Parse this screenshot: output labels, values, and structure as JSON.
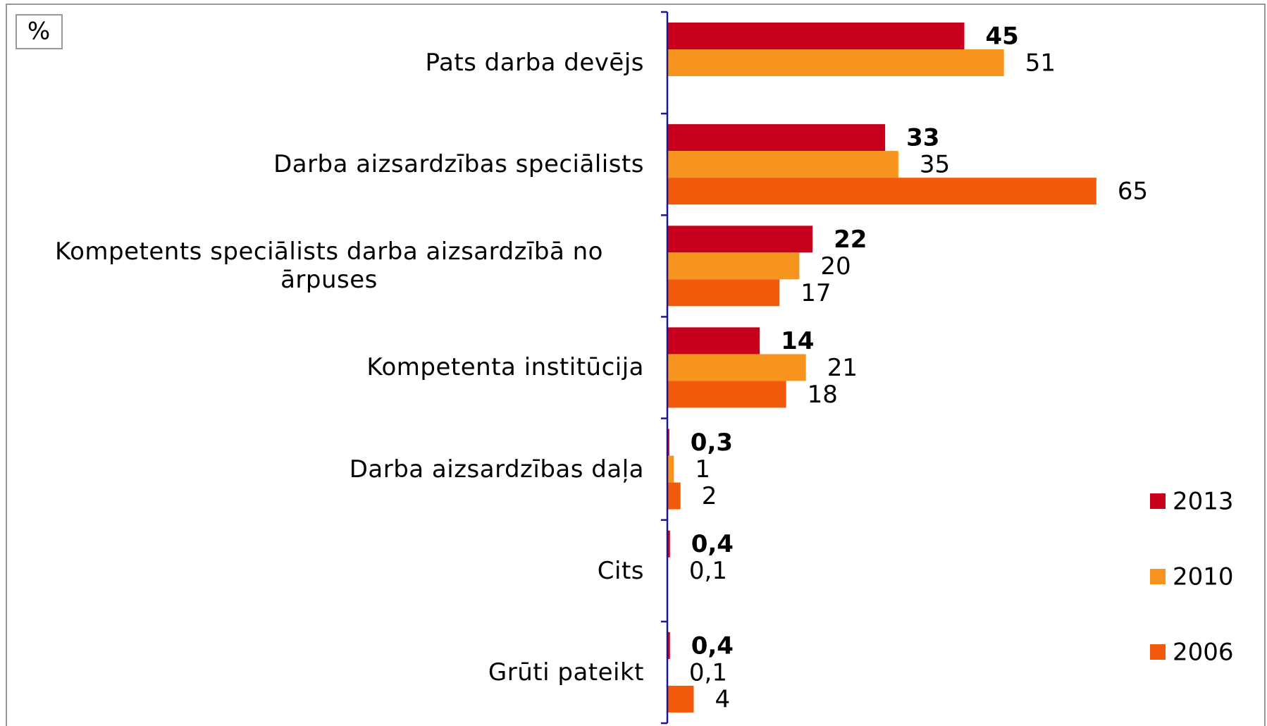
{
  "chart_data": {
    "type": "bar",
    "orientation": "horizontal",
    "unit_label": "%",
    "categories": [
      "Pats darba devējs",
      "Darba aizsardzības speciālists",
      "Kompetents speciālists darba aizsardzībā no ārpuses",
      "Kompetenta institūcija",
      "Darba aizsardzības daļa",
      "Cits",
      "Grūti pateikt"
    ],
    "series": [
      {
        "name": "2013",
        "color": "#c8001e",
        "bold": true,
        "values": [
          45,
          33,
          22,
          14,
          0.3,
          0.4,
          0.4
        ],
        "value_labels": [
          "45",
          "33",
          "22",
          "14",
          "0,3",
          "0,4",
          "0,4"
        ]
      },
      {
        "name": "2010",
        "color": "#f7941d",
        "values": [
          51,
          35,
          20,
          21,
          1,
          0.1,
          0.1
        ],
        "value_labels": [
          "51",
          "35",
          "20",
          "21",
          "1",
          "0,1",
          "0,1"
        ]
      },
      {
        "name": "2006",
        "color": "#f05a0a",
        "values": [
          null,
          65,
          17,
          18,
          2,
          null,
          4
        ],
        "value_labels": [
          null,
          "65",
          "17",
          "18",
          "2",
          null,
          "4"
        ]
      }
    ],
    "xlim": [
      0,
      90
    ],
    "legend": "right"
  }
}
